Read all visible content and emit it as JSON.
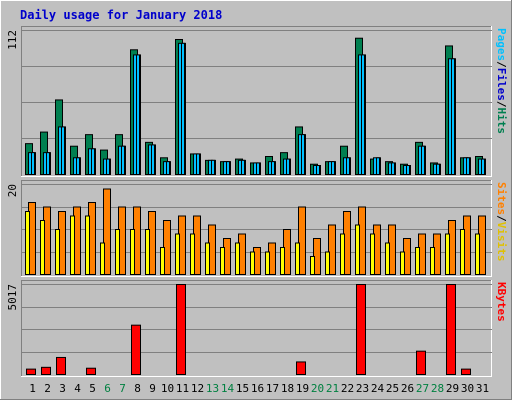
{
  "title": "Daily usage for January 2018",
  "colors": {
    "background": "#c0c0c0",
    "plot": "#c0c0c0",
    "title": "#0000cc",
    "hits": "#007f50",
    "files": "#00c0ff",
    "pages": "#00c0ff",
    "visits": "#ffff00",
    "sites": "#ff8000",
    "kbytes": "#ff0000",
    "weekday": "#000000",
    "weekend": "#008040"
  },
  "chart_data": [
    {
      "type": "bar",
      "panel": "hits-files-pages",
      "categories": [
        "1",
        "2",
        "3",
        "4",
        "5",
        "6",
        "7",
        "8",
        "9",
        "10",
        "11",
        "12",
        "13",
        "14",
        "15",
        "16",
        "17",
        "18",
        "19",
        "20",
        "21",
        "22",
        "23",
        "24",
        "25",
        "26",
        "27",
        "28",
        "29",
        "30",
        "31"
      ],
      "weekend": [
        false,
        false,
        false,
        false,
        false,
        true,
        true,
        false,
        false,
        false,
        false,
        false,
        true,
        true,
        false,
        false,
        false,
        false,
        false,
        true,
        true,
        false,
        false,
        false,
        false,
        false,
        true,
        true,
        false,
        false,
        false
      ],
      "ymax_label": "112",
      "ylim": [
        0,
        112
      ],
      "series": [
        {
          "name": "Hits",
          "values": [
            24,
            33,
            58,
            22,
            31,
            19,
            31,
            97,
            25,
            13,
            105,
            16,
            11,
            10,
            12,
            9,
            14,
            17,
            37,
            8,
            10,
            22,
            106,
            12,
            10,
            8,
            25,
            9,
            100,
            13,
            14
          ]
        },
        {
          "name": "Files",
          "values": [
            17,
            17,
            37,
            13,
            20,
            12,
            22,
            93,
            23,
            10,
            102,
            16,
            11,
            10,
            11,
            9,
            10,
            12,
            31,
            7,
            10,
            13,
            93,
            13,
            9,
            7,
            22,
            8,
            90,
            13,
            12
          ]
        },
        {
          "name": "Pages",
          "values": [
            17,
            17,
            37,
            13,
            20,
            12,
            22,
            93,
            23,
            10,
            102,
            16,
            11,
            10,
            11,
            9,
            10,
            12,
            31,
            7,
            10,
            13,
            93,
            13,
            9,
            7,
            22,
            8,
            90,
            13,
            12
          ]
        }
      ],
      "axis_labels": [
        {
          "text": "Pages",
          "color": "#00c0ff"
        },
        {
          "text": "/",
          "color": "#000000"
        },
        {
          "text": "Files",
          "color": "#0000cc"
        },
        {
          "text": "/",
          "color": "#000000"
        },
        {
          "text": "Hits",
          "color": "#007f50"
        }
      ]
    },
    {
      "type": "bar",
      "panel": "visits-sites",
      "categories": [
        "1",
        "2",
        "3",
        "4",
        "5",
        "6",
        "7",
        "8",
        "9",
        "10",
        "11",
        "12",
        "13",
        "14",
        "15",
        "16",
        "17",
        "18",
        "19",
        "20",
        "21",
        "22",
        "23",
        "24",
        "25",
        "26",
        "27",
        "28",
        "29",
        "30",
        "31"
      ],
      "ymax_label": "20",
      "ylim": [
        0,
        20
      ],
      "series": [
        {
          "name": "Visits",
          "values": [
            14,
            12,
            10,
            13,
            13,
            7,
            10,
            10,
            10,
            6,
            9,
            9,
            7,
            6,
            7,
            5,
            5,
            6,
            7,
            4,
            5,
            9,
            11,
            9,
            7,
            5,
            6,
            6,
            9,
            10,
            9
          ]
        },
        {
          "name": "Sites",
          "values": [
            16,
            15,
            14,
            15,
            16,
            19,
            15,
            15,
            14,
            12,
            13,
            13,
            11,
            8,
            9,
            6,
            7,
            10,
            15,
            8,
            11,
            14,
            15,
            11,
            11,
            8,
            9,
            9,
            12,
            13,
            13
          ]
        }
      ],
      "axis_labels": [
        {
          "text": "Sites",
          "color": "#ff8000"
        },
        {
          "text": "/",
          "color": "#000000"
        },
        {
          "text": "Visits",
          "color": "#e0c000"
        }
      ]
    },
    {
      "type": "bar",
      "panel": "kbytes",
      "categories": [
        "1",
        "2",
        "3",
        "4",
        "5",
        "6",
        "7",
        "8",
        "9",
        "10",
        "11",
        "12",
        "13",
        "14",
        "15",
        "16",
        "17",
        "18",
        "19",
        "20",
        "21",
        "22",
        "23",
        "24",
        "25",
        "26",
        "27",
        "28",
        "29",
        "30",
        "31"
      ],
      "ymax_label": "5017",
      "ylim": [
        0,
        5017
      ],
      "series": [
        {
          "name": "KBytes",
          "values": [
            300,
            400,
            950,
            0,
            350,
            0,
            0,
            2750,
            0,
            0,
            5017,
            0,
            0,
            0,
            0,
            0,
            0,
            0,
            700,
            0,
            0,
            0,
            5017,
            0,
            0,
            0,
            1300,
            0,
            5017,
            300,
            0
          ]
        }
      ],
      "axis_labels": [
        {
          "text": "KBytes",
          "color": "#ff0000"
        }
      ]
    }
  ]
}
